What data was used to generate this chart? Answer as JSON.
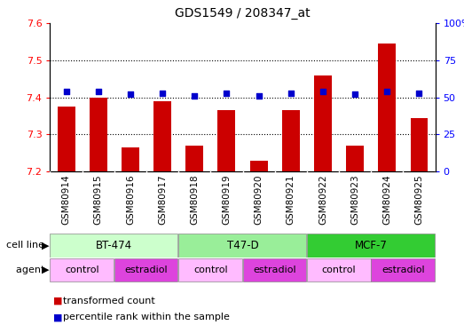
{
  "title": "GDS1549 / 208347_at",
  "samples": [
    "GSM80914",
    "GSM80915",
    "GSM80916",
    "GSM80917",
    "GSM80918",
    "GSM80919",
    "GSM80920",
    "GSM80921",
    "GSM80922",
    "GSM80923",
    "GSM80924",
    "GSM80925"
  ],
  "transformed_count": [
    7.375,
    7.4,
    7.265,
    7.39,
    7.27,
    7.365,
    7.23,
    7.365,
    7.46,
    7.27,
    7.545,
    7.345
  ],
  "percentile_rank": [
    54,
    54,
    52,
    53,
    51,
    53,
    51,
    53,
    54,
    52,
    54,
    53
  ],
  "ylim_left": [
    7.2,
    7.6
  ],
  "ylim_right": [
    0,
    100
  ],
  "yticks_left": [
    7.2,
    7.3,
    7.4,
    7.5,
    7.6
  ],
  "yticks_right": [
    0,
    25,
    50,
    75,
    100
  ],
  "bar_color": "#cc0000",
  "dot_color": "#0000cc",
  "bar_bottom": 7.2,
  "cell_lines": [
    {
      "label": "BT-474",
      "start": 0,
      "end": 3,
      "color": "#ccffcc"
    },
    {
      "label": "T47-D",
      "start": 4,
      "end": 7,
      "color": "#99ee99"
    },
    {
      "label": "MCF-7",
      "start": 8,
      "end": 11,
      "color": "#33cc33"
    }
  ],
  "agents": [
    {
      "label": "control",
      "start": 0,
      "end": 1,
      "color": "#ffbbff"
    },
    {
      "label": "estradiol",
      "start": 2,
      "end": 3,
      "color": "#dd44dd"
    },
    {
      "label": "control",
      "start": 4,
      "end": 5,
      "color": "#ffbbff"
    },
    {
      "label": "estradiol",
      "start": 6,
      "end": 7,
      "color": "#dd44dd"
    },
    {
      "label": "control",
      "start": 8,
      "end": 9,
      "color": "#ffbbff"
    },
    {
      "label": "estradiol",
      "start": 10,
      "end": 11,
      "color": "#dd44dd"
    }
  ],
  "legend_bar_label": "transformed count",
  "legend_dot_label": "percentile rank within the sample",
  "cell_line_label": "cell line",
  "agent_label": "agent",
  "bg_color": "#d8d8d8",
  "grid_color": "#d0d0d0"
}
